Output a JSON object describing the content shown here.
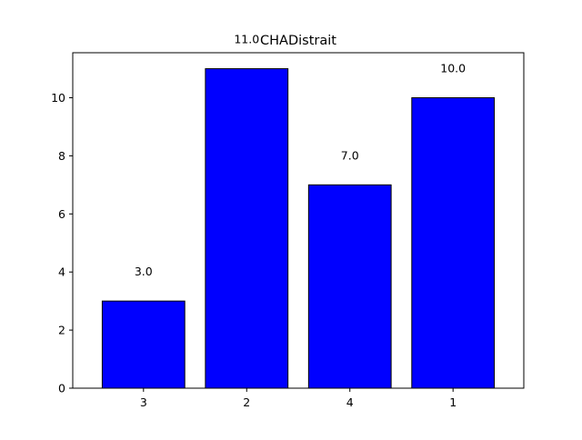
{
  "chart_data": {
    "type": "bar",
    "title": "CHADistrait",
    "xlabel": "",
    "ylabel": "",
    "categories": [
      "3",
      "2",
      "4",
      "1"
    ],
    "values": [
      3,
      11,
      7,
      10
    ],
    "data_labels": [
      "3.0",
      "11.0",
      "7.0",
      "10.0"
    ],
    "ylim": [
      0,
      11.55
    ],
    "y_ticks": [
      0,
      2,
      4,
      6,
      8,
      10
    ],
    "y_tick_labels": [
      "0",
      "2",
      "4",
      "6",
      "8",
      "10"
    ],
    "grid": false,
    "legend": "none",
    "colors": {
      "bar_fill": "#0000ff",
      "bar_edge": "#000000",
      "axis": "#000000",
      "background": "#ffffff"
    }
  }
}
